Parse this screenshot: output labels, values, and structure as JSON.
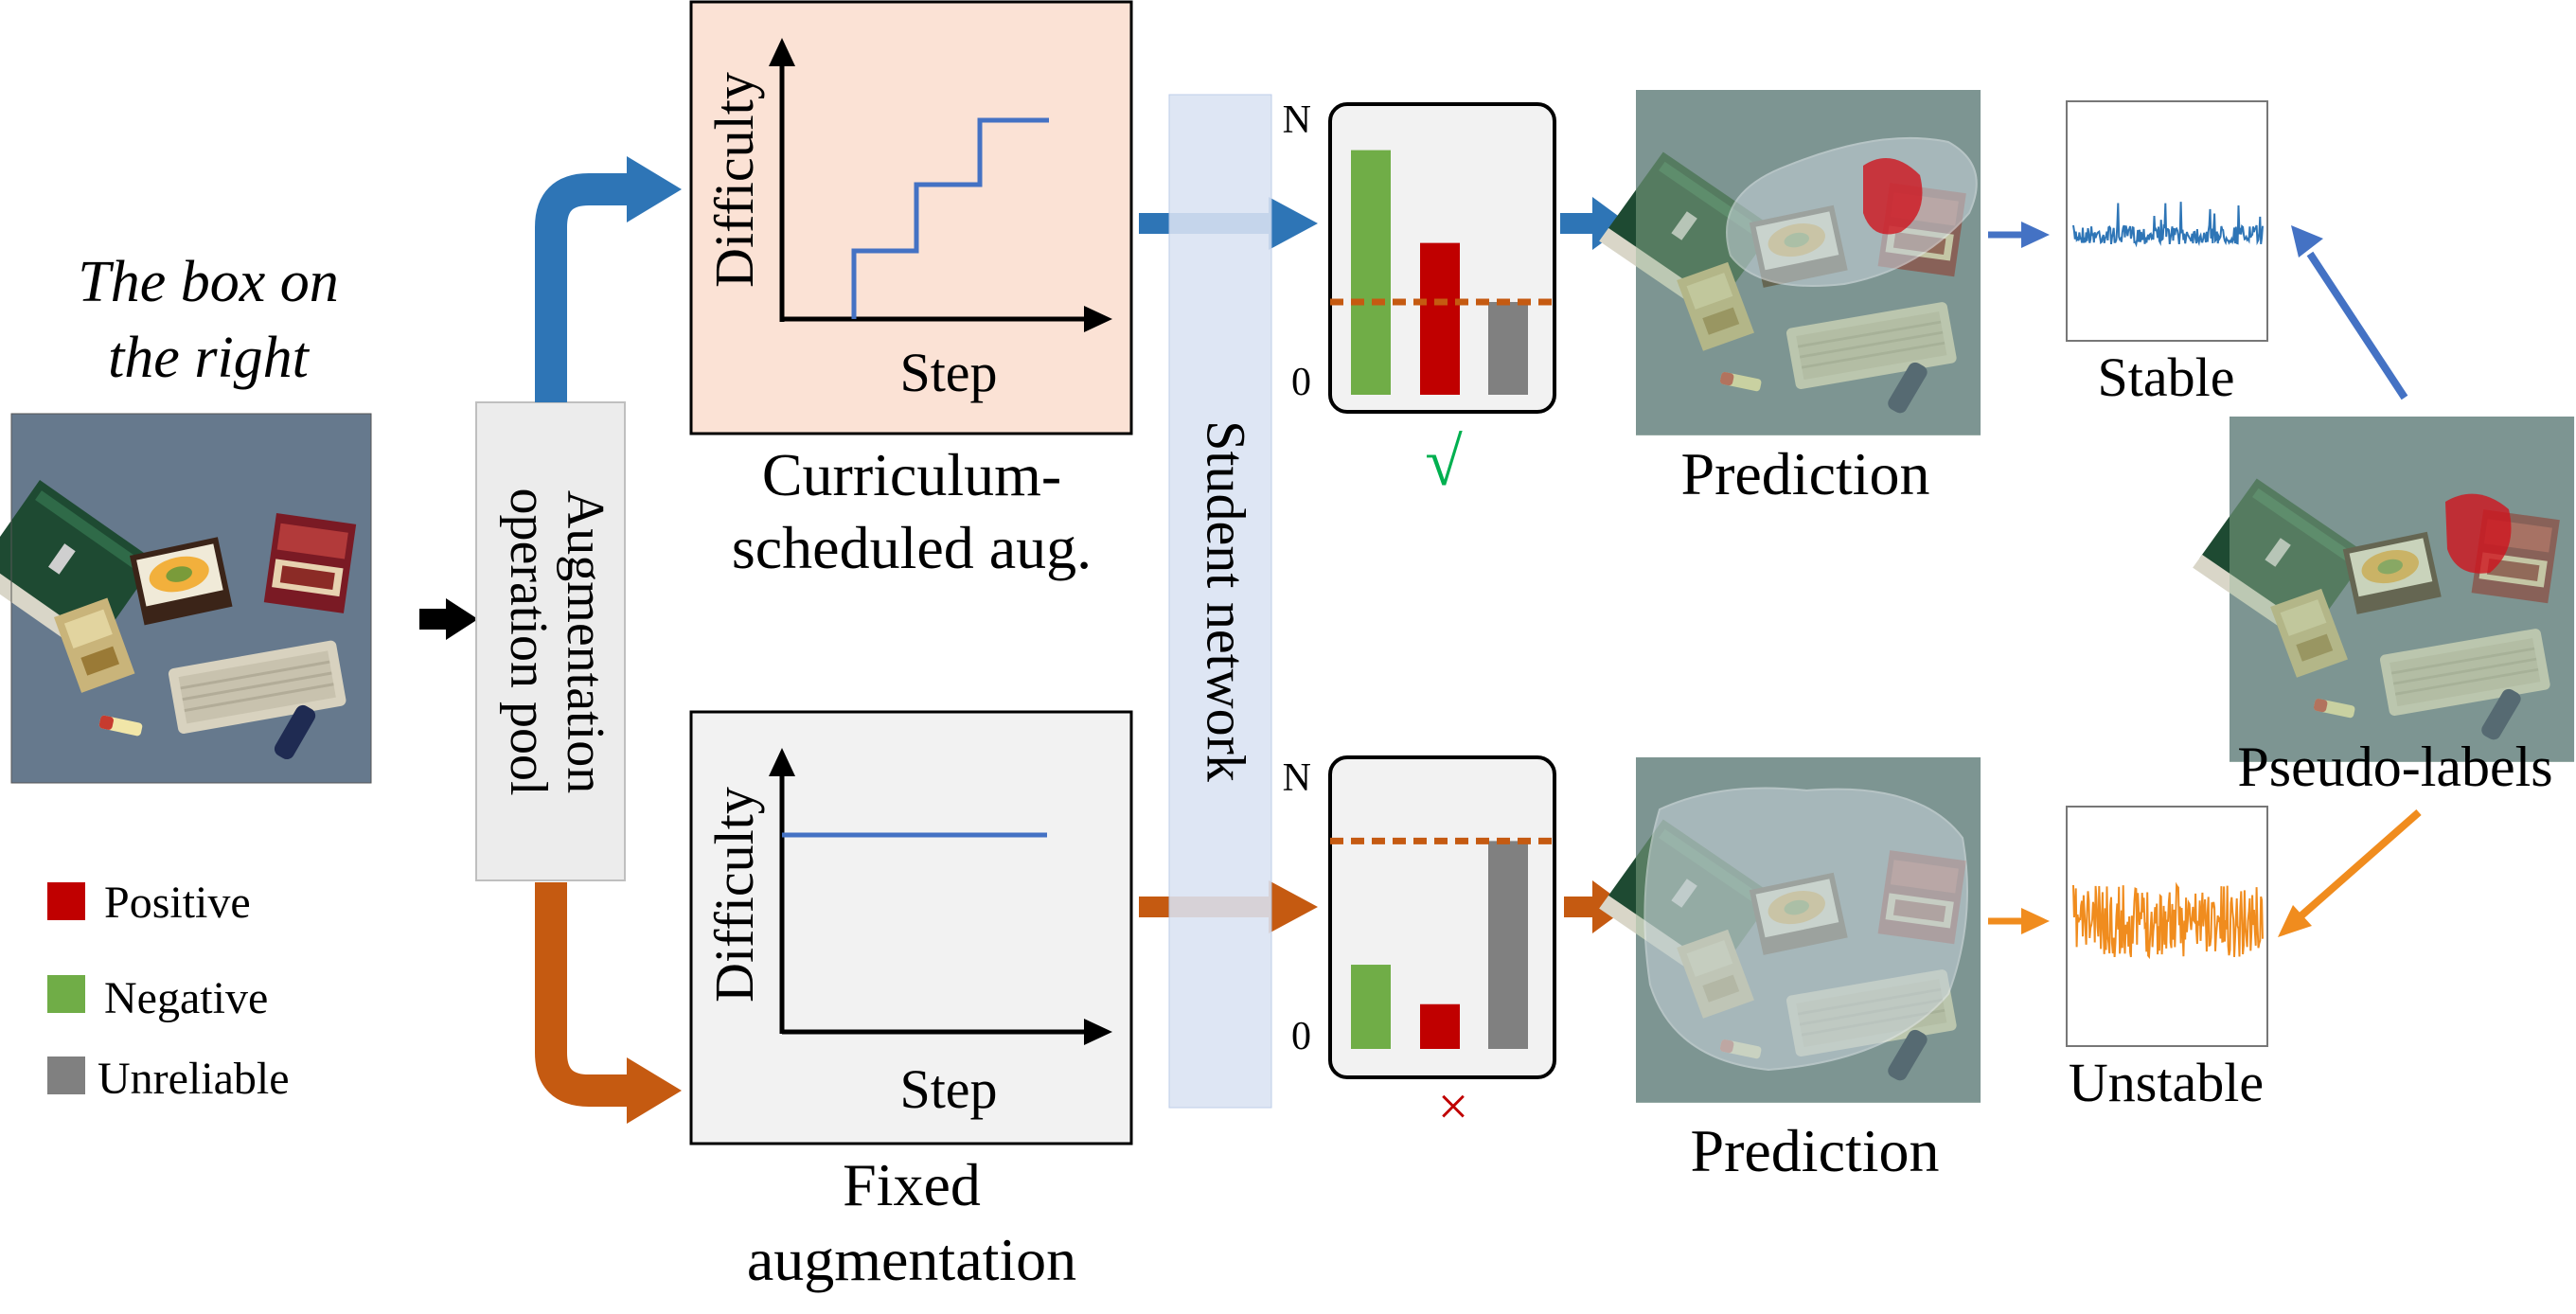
{
  "query": {
    "line1": "The box  on",
    "line2": "the right"
  },
  "pool_label": {
    "line1": "Augmentation",
    "line2": "operation pool"
  },
  "student_network": "Student network",
  "legend": [
    {
      "label": "Positive",
      "color": "#c00000"
    },
    {
      "label": "Negative",
      "color": "#70ad47"
    },
    {
      "label": "Unreliable",
      "color": "#808080"
    }
  ],
  "colors": {
    "curriculum_blue": "#2e75b6",
    "fixed_orange": "#c55a11",
    "stable_blue": "#2e75b6",
    "unstable_orange": "#f08c1e",
    "threshold": "#c55a11",
    "curriculum_panel_bg": "#fbe2d5",
    "fixed_panel_bg": "#f2f2f2",
    "student_band": "#dae3f3",
    "check_green": "#00b050",
    "cross_red": "#c00000"
  },
  "curriculum_panel": {
    "ylabel": "Difficulty",
    "xlabel": "Step",
    "caption_line1": "Curriculum-",
    "caption_line2": "scheduled aug."
  },
  "fixed_panel": {
    "ylabel": "Difficulty",
    "xlabel": "Step",
    "caption_line1": "Fixed",
    "caption_line2": "augmentation"
  },
  "prediction_top": "Prediction",
  "prediction_bottom": "Prediction",
  "pseudo_labels": "Pseudo-labels",
  "stable_label": "Stable",
  "unstable_label": "Unstable",
  "verdict_top": "√",
  "verdict_bottom": "×",
  "chart_data": [
    {
      "type": "bar",
      "categories": [
        "Negative",
        "Positive",
        "Unreliable"
      ],
      "values": [
        0.87,
        0.54,
        0.33
      ],
      "threshold": 0.33,
      "ylim": [
        0,
        1
      ],
      "yticks": [
        "0",
        "N"
      ]
    },
    {
      "type": "bar",
      "categories": [
        "Negative",
        "Positive",
        "Unreliable"
      ],
      "values": [
        0.32,
        0.17,
        0.79
      ],
      "threshold": 0.79,
      "ylim": [
        0,
        1
      ],
      "yticks": [
        "0",
        "N"
      ]
    }
  ]
}
